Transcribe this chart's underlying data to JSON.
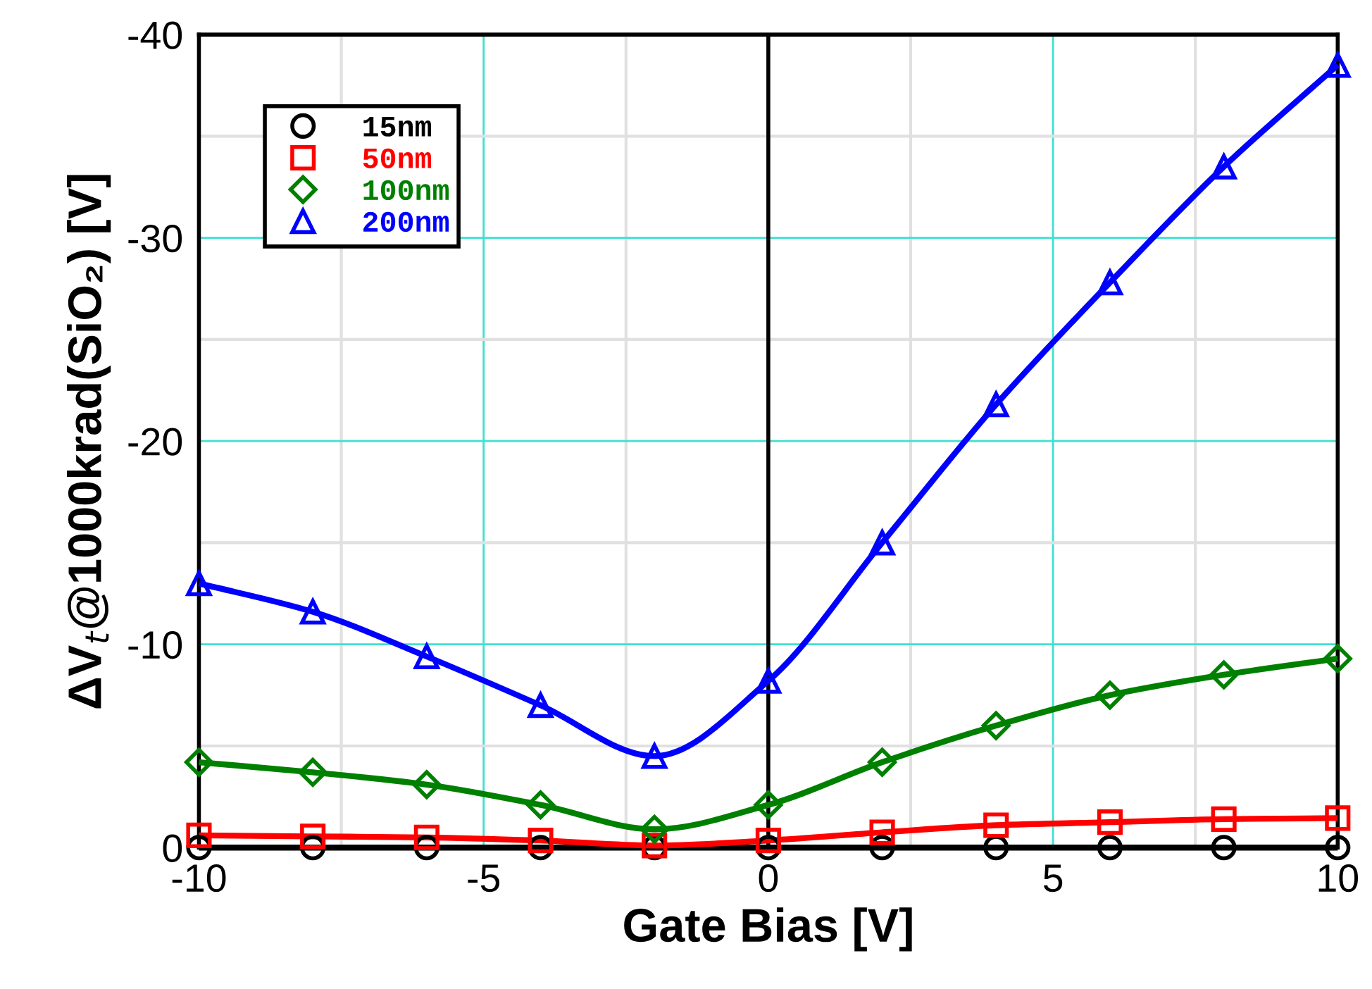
{
  "chart_data": {
    "type": "line",
    "xlabel": "Gate Bias [V]",
    "ylabel": "ΔV$_{t}$@1000krad(SiO₂) [V]",
    "x": [
      -10,
      -8,
      -6,
      -4,
      -2,
      0,
      2,
      4,
      6,
      8,
      10
    ],
    "series": [
      {
        "name": "15nm",
        "color": "#000000",
        "marker": "circle",
        "values": [
          0,
          0,
          0,
          0,
          0,
          0,
          0,
          0,
          0,
          0,
          0
        ]
      },
      {
        "name": "50nm",
        "color": "#ff0000",
        "marker": "square",
        "values": [
          -0.6,
          -0.55,
          -0.5,
          -0.35,
          -0.1,
          -0.35,
          -0.75,
          -1.1,
          -1.25,
          -1.4,
          -1.45
        ]
      },
      {
        "name": "100nm",
        "color": "#008000",
        "marker": "diamond",
        "values": [
          -4.2,
          -3.7,
          -3.1,
          -2.1,
          -0.9,
          -2.1,
          -4.2,
          -6.0,
          -7.5,
          -8.5,
          -9.3
        ]
      },
      {
        "name": "200nm",
        "color": "#0000ff",
        "marker": "triangle",
        "values": [
          -13.0,
          -11.6,
          -9.4,
          -7.0,
          -4.5,
          -8.2,
          -15.0,
          -21.8,
          -27.8,
          -33.5,
          -38.5
        ]
      }
    ],
    "xlim": [
      -10,
      10
    ],
    "xticks": [
      -10,
      -5,
      0,
      5,
      10
    ],
    "ylim": [
      0,
      -40
    ],
    "yticks": [
      0,
      -10,
      -20,
      -30,
      -40
    ],
    "ref_lines": [
      {
        "axis": "x",
        "value": 0,
        "color": "#000000"
      }
    ],
    "grid": true,
    "legend": "top left",
    "line_style": "solid"
  }
}
